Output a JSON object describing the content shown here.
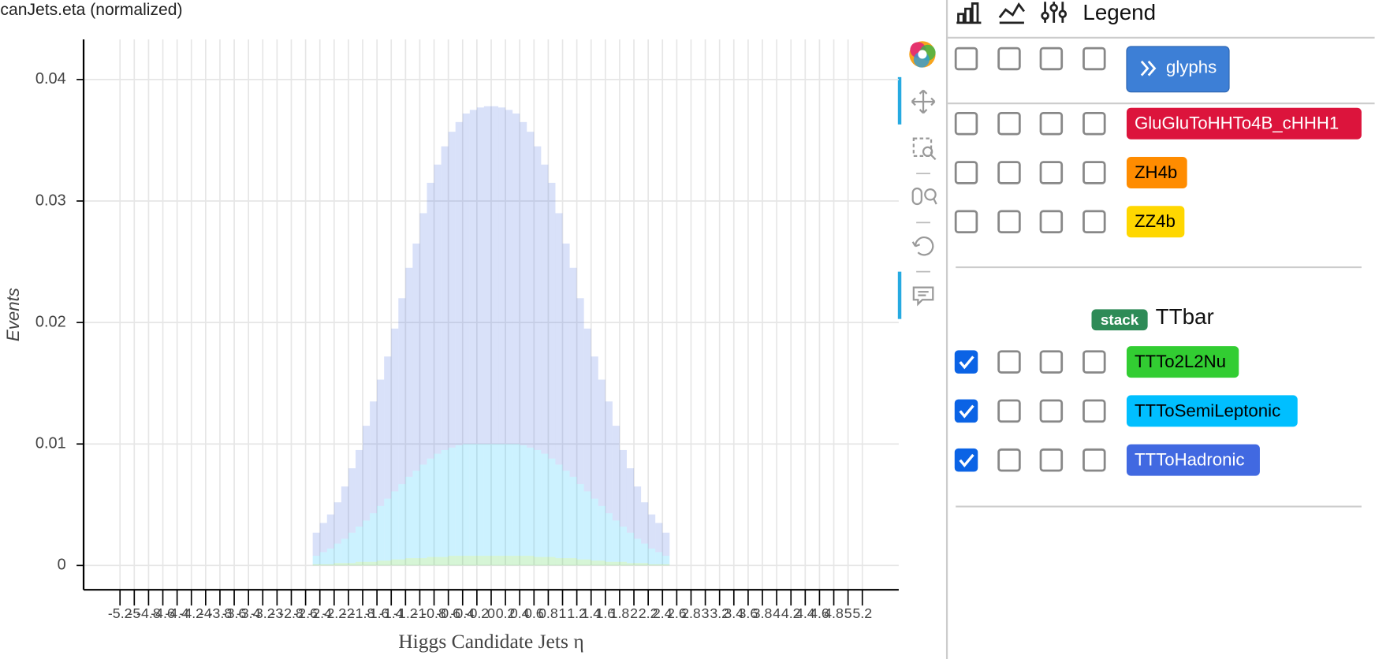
{
  "chart_data": {
    "type": "histogram",
    "title": "canJets.eta (normalized)",
    "x_label": "Higgs Candidate Jets η",
    "y_label": "Events",
    "bins": [
      -2.5,
      -2.4,
      -2.3,
      -2.2,
      -2.1,
      -2.0,
      -1.9,
      -1.8,
      -1.7,
      -1.6,
      -1.5,
      -1.4,
      -1.3,
      -1.2,
      -1.1,
      -1.0,
      -0.9,
      -0.8,
      -0.7,
      -0.6,
      -0.5,
      -0.4,
      -0.3,
      -0.2,
      -0.1,
      0,
      0.1,
      0.2,
      0.3,
      0.4,
      0.5,
      0.6,
      0.7,
      0.8,
      0.9,
      1.0,
      1.1,
      1.2,
      1.3,
      1.4,
      1.5,
      1.6,
      1.7,
      1.8,
      1.9,
      2.0,
      2.1,
      2.2,
      2.3,
      2.4,
      2.5
    ],
    "series": [
      {
        "name": "TTTo2L2Nu",
        "color": "#32cd32",
        "values": [
          0.0001,
          0.0001,
          0.0001,
          0.0002,
          0.0002,
          0.0002,
          0.0003,
          0.0003,
          0.0003,
          0.0004,
          0.0004,
          0.0005,
          0.0005,
          0.0006,
          0.0006,
          0.0006,
          0.0007,
          0.0007,
          0.0007,
          0.0008,
          0.0008,
          0.0008,
          0.0008,
          0.0008,
          0.0008,
          0.0008,
          0.0008,
          0.0008,
          0.0008,
          0.0008,
          0.0008,
          0.0007,
          0.0007,
          0.0007,
          0.0006,
          0.0006,
          0.0006,
          0.0005,
          0.0005,
          0.0004,
          0.0004,
          0.0003,
          0.0003,
          0.0003,
          0.0002,
          0.0002,
          0.0002,
          0.0001,
          0.0001,
          0.0001
        ]
      },
      {
        "name": "TTToSemiLeptonic",
        "color": "#00bfff",
        "values": [
          0.0007,
          0.001,
          0.0013,
          0.0016,
          0.002,
          0.0025,
          0.0029,
          0.0034,
          0.004,
          0.0045,
          0.0051,
          0.0056,
          0.0062,
          0.0067,
          0.0072,
          0.0077,
          0.0081,
          0.0085,
          0.0088,
          0.0089,
          0.0091,
          0.0092,
          0.0092,
          0.0092,
          0.0092,
          0.0092,
          0.0092,
          0.0092,
          0.0092,
          0.0091,
          0.0089,
          0.0088,
          0.0085,
          0.0081,
          0.0077,
          0.0072,
          0.0067,
          0.0062,
          0.0056,
          0.0051,
          0.0045,
          0.004,
          0.0034,
          0.0029,
          0.0025,
          0.002,
          0.0016,
          0.0013,
          0.001,
          0.0007
        ]
      },
      {
        "name": "TTToHadronic",
        "color": "#4169e1",
        "values": [
          0.0019,
          0.0024,
          0.0028,
          0.0034,
          0.0043,
          0.0053,
          0.0063,
          0.0078,
          0.0092,
          0.0104,
          0.0117,
          0.0134,
          0.0153,
          0.0172,
          0.0187,
          0.0207,
          0.0227,
          0.0238,
          0.025,
          0.026,
          0.0266,
          0.0272,
          0.0275,
          0.0277,
          0.0278,
          0.0278,
          0.0277,
          0.0275,
          0.0272,
          0.0266,
          0.026,
          0.025,
          0.0238,
          0.0227,
          0.0207,
          0.0187,
          0.0172,
          0.0153,
          0.0134,
          0.0117,
          0.0104,
          0.0092,
          0.0078,
          0.0063,
          0.0053,
          0.0043,
          0.0034,
          0.0028,
          0.0024,
          0.0019
        ]
      }
    ],
    "stacked": true,
    "xlim": [
      -5.71,
      5.71
    ],
    "xticks": [
      -5.2,
      -5,
      -4.8,
      -4.6,
      -4.4,
      -4.2,
      -4,
      -3.8,
      -3.6,
      -3.4,
      -3.2,
      -3,
      -2.8,
      -2.6,
      -2.4,
      -2.2,
      -2,
      -1.8,
      -1.6,
      -1.4,
      -1.2,
      -1,
      -0.8,
      -0.6,
      -0.4,
      -0.2,
      0,
      0.2,
      0.4,
      0.6,
      0.8,
      1,
      1.2,
      1.4,
      1.6,
      1.8,
      2,
      2.2,
      2.4,
      2.6,
      2.8,
      3,
      3.2,
      3.4,
      3.6,
      3.8,
      4,
      4.2,
      4.4,
      4.6,
      4.8,
      5,
      5.2
    ],
    "ylim": [
      -0.002,
      0.0433
    ],
    "yticks": [
      0,
      0.01,
      0.02,
      0.03,
      0.04
    ],
    "grid": true
  },
  "legend_panel": {
    "title": "Legend",
    "glyphs": {
      "label": "glyphs",
      "checks": [
        false,
        false,
        false,
        false
      ]
    },
    "items": [
      {
        "name": "GluGluToHHTo4B_cHHH1",
        "color": "#dc143c",
        "checks": [
          false,
          false,
          false,
          false
        ]
      },
      {
        "name": "ZH4b",
        "color": "#ff8c00",
        "checks": [
          false,
          false,
          false,
          false
        ]
      },
      {
        "name": "ZZ4b",
        "color": "#ffd700",
        "checks": [
          false,
          false,
          false,
          false
        ]
      }
    ],
    "group": {
      "badge": "stack",
      "name": "TTbar",
      "checks": [
        [
          true,
          false,
          false,
          false
        ],
        [
          true,
          false,
          false,
          false
        ],
        [
          true,
          false,
          false,
          false
        ]
      ]
    }
  }
}
